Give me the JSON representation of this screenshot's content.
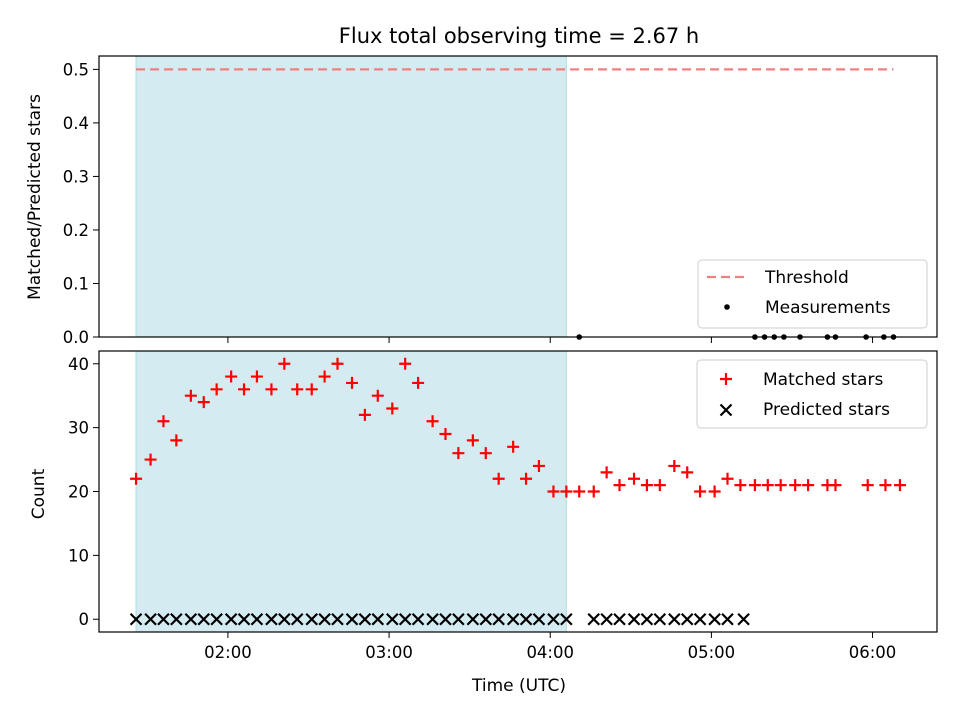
{
  "figure": {
    "title": "Flux total observing time = 2.67 h"
  },
  "colors": {
    "shade": "#d4ebf1",
    "shade_edge": "#b0dde0",
    "threshold": "#f08080",
    "matched": "#ff0000",
    "predicted": "#000000",
    "measurements": "#000000"
  },
  "chart_data": [
    {
      "type": "line",
      "panel": "top",
      "title": "Flux total observing time = 2.67 h",
      "xlabel": "",
      "ylabel": "Matched/Predicted stars",
      "xlim_hours": [
        1.2,
        6.4
      ],
      "ylim": [
        0,
        0.525
      ],
      "yticks": [
        0.0,
        0.1,
        0.2,
        0.3,
        0.4,
        0.5
      ],
      "ytick_labels": [
        "0.0",
        "0.1",
        "0.2",
        "0.3",
        "0.4",
        "0.5"
      ],
      "shaded_span_hours": [
        1.43,
        4.1
      ],
      "legend_position": "lower-right",
      "series": [
        {
          "name": "Threshold",
          "style": "dashed-line",
          "x_hours": [
            1.43,
            6.13
          ],
          "values": [
            0.5,
            0.5
          ]
        },
        {
          "name": "Measurements",
          "style": "dot",
          "x_hours": [
            4.18,
            5.27,
            5.33,
            5.39,
            5.45,
            5.55,
            5.72,
            5.77,
            5.96,
            6.07,
            6.13
          ],
          "values": [
            0,
            0,
            0,
            0,
            0,
            0,
            0,
            0,
            0,
            0,
            0
          ]
        }
      ]
    },
    {
      "type": "scatter",
      "panel": "bottom",
      "xlabel": "Time (UTC)",
      "ylabel": "Count",
      "xlim_hours": [
        1.2,
        6.4
      ],
      "ylim": [
        -2,
        42
      ],
      "yticks": [
        0,
        10,
        20,
        30,
        40
      ],
      "ytick_labels": [
        "0",
        "10",
        "20",
        "30",
        "40"
      ],
      "xticks_hours": [
        2,
        3,
        4,
        5,
        6
      ],
      "xtick_labels": [
        "02:00",
        "03:00",
        "04:00",
        "05:00",
        "06:00"
      ],
      "shaded_span_hours": [
        1.43,
        4.1
      ],
      "legend_position": "top-right",
      "series": [
        {
          "name": "Matched stars",
          "marker": "plus",
          "x_hours": [
            1.43,
            1.52,
            1.6,
            1.68,
            1.77,
            1.85,
            1.93,
            2.02,
            2.1,
            2.18,
            2.27,
            2.35,
            2.43,
            2.52,
            2.6,
            2.68,
            2.77,
            2.85,
            2.93,
            3.02,
            3.1,
            3.18,
            3.27,
            3.35,
            3.43,
            3.52,
            3.6,
            3.68,
            3.77,
            3.85,
            3.93,
            4.02,
            4.1,
            4.18,
            4.27,
            4.35,
            4.43,
            4.52,
            4.6,
            4.68,
            4.77,
            4.85,
            4.93,
            5.02,
            5.1,
            5.18,
            5.27,
            5.35,
            5.43,
            5.52,
            5.6,
            5.72,
            5.77,
            5.97,
            6.08,
            6.17
          ],
          "values": [
            22,
            25,
            31,
            28,
            35,
            34,
            36,
            38,
            36,
            38,
            36,
            40,
            36,
            36,
            38,
            40,
            37,
            32,
            35,
            33,
            40,
            37,
            31,
            29,
            26,
            28,
            26,
            22,
            27,
            22,
            24,
            20,
            20,
            20,
            20,
            23,
            21,
            22,
            21,
            21,
            24,
            23,
            20,
            20,
            22,
            21,
            21,
            21,
            21,
            21,
            21,
            21,
            21,
            21,
            21,
            21
          ]
        },
        {
          "name": "Predicted stars",
          "marker": "x",
          "x_hours": [
            1.43,
            1.52,
            1.6,
            1.68,
            1.77,
            1.85,
            1.93,
            2.02,
            2.1,
            2.18,
            2.27,
            2.35,
            2.43,
            2.52,
            2.6,
            2.68,
            2.77,
            2.85,
            2.93,
            3.02,
            3.1,
            3.18,
            3.27,
            3.35,
            3.43,
            3.52,
            3.6,
            3.68,
            3.77,
            3.85,
            3.93,
            4.02,
            4.1,
            4.27,
            4.35,
            4.43,
            4.52,
            4.6,
            4.68,
            4.77,
            4.85,
            4.93,
            5.02,
            5.1,
            5.2
          ],
          "values": [
            0,
            0,
            0,
            0,
            0,
            0,
            0,
            0,
            0,
            0,
            0,
            0,
            0,
            0,
            0,
            0,
            0,
            0,
            0,
            0,
            0,
            0,
            0,
            0,
            0,
            0,
            0,
            0,
            0,
            0,
            0,
            0,
            0,
            0,
            0,
            0,
            0,
            0,
            0,
            0,
            0,
            0,
            0,
            0,
            0
          ]
        }
      ]
    }
  ]
}
